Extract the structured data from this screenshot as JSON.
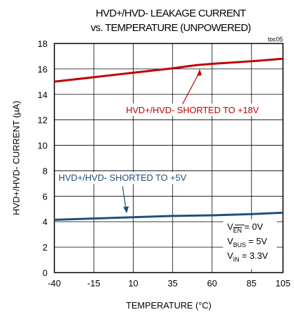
{
  "chart_data": {
    "type": "line",
    "title_line1": "HVD+/HVD- LEAKAGE CURRENT",
    "title_line2": "vs. TEMPERATURE (UNPOWERED)",
    "figure_id": "toc05",
    "xlabel": "TEMPERATURE (°C)",
    "ylabel": "HVD+/HVD- CURRENT (µA)",
    "xlim": [
      -40,
      105
    ],
    "ylim": [
      0,
      18
    ],
    "xticks": [
      -40,
      -15,
      10,
      35,
      60,
      85,
      105
    ],
    "yticks": [
      0,
      2,
      4,
      6,
      8,
      10,
      12,
      14,
      16,
      18
    ],
    "grid": true,
    "series": [
      {
        "name": "HVD+/HVD- SHORTED TO +18V",
        "color": "#c00000",
        "x": [
          -40,
          -15,
          10,
          35,
          50,
          60,
          85,
          105
        ],
        "y": [
          15.0,
          15.35,
          15.7,
          16.05,
          16.3,
          16.4,
          16.6,
          16.8
        ]
      },
      {
        "name": "HVD+/HVD- SHORTED TO +5V",
        "color": "#1f4e79",
        "x": [
          -40,
          -15,
          10,
          35,
          60,
          85,
          105
        ],
        "y": [
          4.15,
          4.25,
          4.35,
          4.45,
          4.5,
          4.6,
          4.7
        ]
      }
    ],
    "annotations": [
      {
        "main": "V",
        "sub": "EN",
        "rest": " = 0V",
        "overline": true
      },
      {
        "main": "V",
        "sub": "BUS",
        "rest": " = 5V",
        "overline": false
      },
      {
        "main": "V",
        "sub": "IN",
        "rest": " = 3.3V",
        "overline": false
      }
    ]
  }
}
